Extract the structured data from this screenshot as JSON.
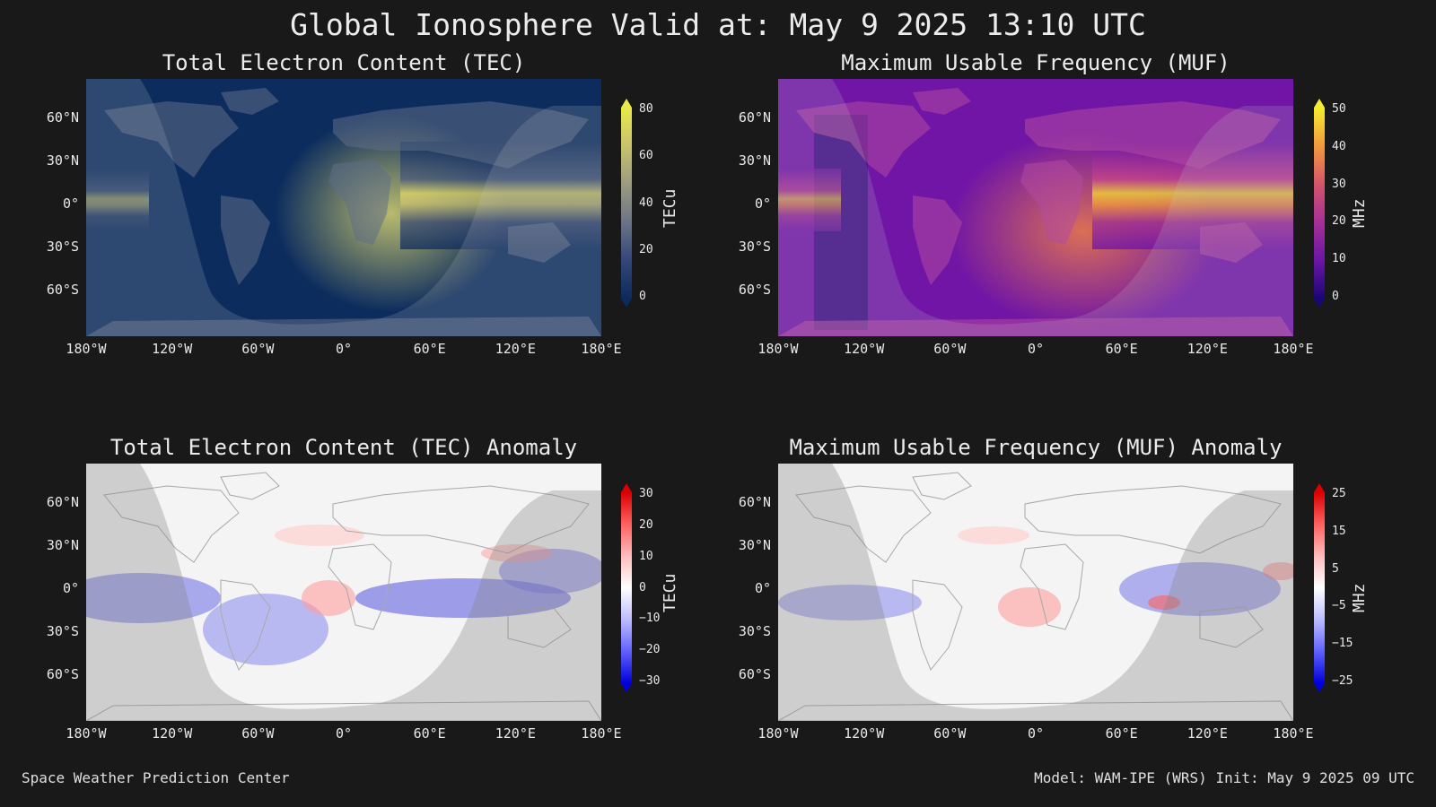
{
  "title": "Global Ionosphere Valid at: May 9 2025 13:10 UTC",
  "lat_labels": [
    "60°N",
    "30°N",
    "0°",
    "30°S",
    "60°S"
  ],
  "lon_labels": [
    "180°W",
    "120°W",
    "60°W",
    "0°",
    "60°E",
    "120°E",
    "180°E"
  ],
  "panels": [
    {
      "title": "Total Electron Content (TEC)",
      "cbar_label": "TECu",
      "cbar_ticks": [
        "80",
        "60",
        "40",
        "20",
        "0"
      ],
      "cbar_colors": [
        "#e9e94a",
        "#c7c36d",
        "#9b9b80",
        "#6b7486",
        "#34467a",
        "#0c2a5c"
      ],
      "ocean_color": "#0c2c5e",
      "land_color": "#5f6e86"
    },
    {
      "title": "Maximum Usable Frequency (MUF)",
      "cbar_label": "MHz",
      "cbar_ticks": [
        "50",
        "40",
        "30",
        "20",
        "10",
        "0"
      ],
      "cbar_colors": [
        "#f4ec30",
        "#f29a3c",
        "#d5546a",
        "#a73096",
        "#6a16a6",
        "#1a0678"
      ],
      "ocean_color": "#7015a6",
      "land_color": "#b34aa0"
    },
    {
      "title": "Total Electron Content (TEC) Anomaly",
      "cbar_label": "TECu",
      "cbar_ticks": [
        "30",
        "20",
        "10",
        "0",
        "−10",
        "−20",
        "−30"
      ],
      "cbar_colors": [
        "#d80000",
        "#ff6060",
        "#ffbcbc",
        "#ffffff",
        "#bcbcff",
        "#6060ff",
        "#0000d8"
      ],
      "ocean_color": "#f4f4f4",
      "land_color": "#f8f8f8"
    },
    {
      "title": "Maximum Usable Frequency (MUF) Anomaly",
      "cbar_label": "MHz",
      "cbar_ticks": [
        "25",
        "15",
        "5",
        "−5",
        "−15",
        "−25"
      ],
      "cbar_colors": [
        "#d80000",
        "#ff6060",
        "#ffbcbc",
        "#ffffff",
        "#bcbcff",
        "#6060ff",
        "#0000d8"
      ],
      "ocean_color": "#f4f4f4",
      "land_color": "#f8f8f8"
    }
  ],
  "footer_left": "Space Weather Prediction Center",
  "footer_right": "Model: WAM-IPE (WRS) Init: May 9 2025 09 UTC"
}
